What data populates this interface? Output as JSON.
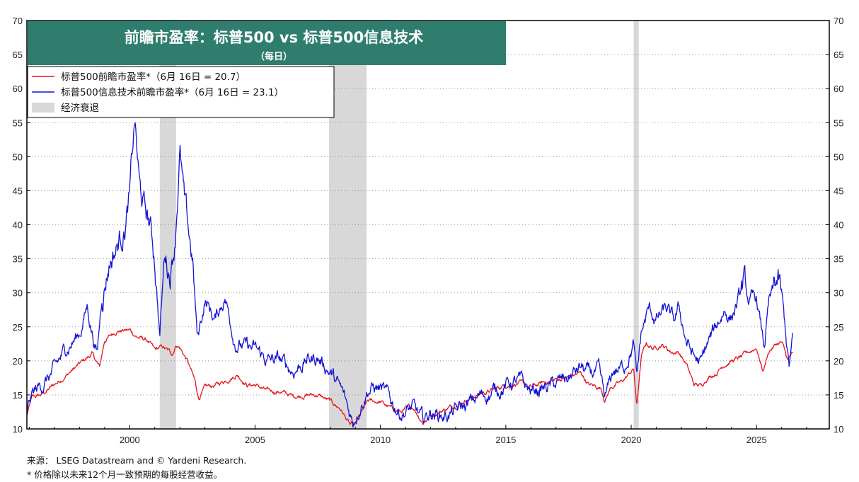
{
  "chart_data": {
    "type": "line",
    "title": "前瞻市盈率：标普500 vs 标普500信息技术",
    "subtitle": "（每日）",
    "xlim": [
      1995.9,
      2027.9
    ],
    "ylim": [
      10,
      70
    ],
    "y_ticks": [
      10,
      15,
      20,
      25,
      30,
      35,
      40,
      45,
      50,
      55,
      60,
      65,
      70
    ],
    "x_ticks": [
      2000,
      2005,
      2010,
      2015,
      2020,
      2025
    ],
    "x_tick_labels": [
      "2000",
      "2005",
      "2010",
      "2015",
      "2020",
      "2025"
    ],
    "y_tick_labels": [
      "10",
      "15",
      "20",
      "25",
      "30",
      "35",
      "40",
      "45",
      "50",
      "55",
      "60",
      "65",
      "70"
    ],
    "grid": "horizontal dotted",
    "legend_position": "top-left",
    "recessions": [
      [
        2001.2,
        2001.85
      ],
      [
        2007.95,
        2009.45
      ],
      [
        2020.1,
        2020.3
      ]
    ],
    "series": [
      {
        "name": "标普500前瞻市盈率*（6月 16日 = 20.7）",
        "color": "#e8141c",
        "points": [
          [
            1995.9,
            12.0
          ],
          [
            1996.1,
            14.5
          ],
          [
            1996.5,
            15.0
          ],
          [
            1997.0,
            16.5
          ],
          [
            1997.5,
            18.0
          ],
          [
            1998.0,
            19.5
          ],
          [
            1998.5,
            21.0
          ],
          [
            1998.8,
            19.0
          ],
          [
            1999.0,
            23.0
          ],
          [
            1999.5,
            24.5
          ],
          [
            2000.0,
            24.5
          ],
          [
            2000.3,
            23.5
          ],
          [
            2000.7,
            23.0
          ],
          [
            2001.0,
            21.5
          ],
          [
            2001.3,
            22.0
          ],
          [
            2001.7,
            21.0
          ],
          [
            2001.85,
            22.5
          ],
          [
            2002.0,
            22.0
          ],
          [
            2002.3,
            20.0
          ],
          [
            2002.6,
            17.0
          ],
          [
            2002.75,
            14.5
          ],
          [
            2003.0,
            16.0
          ],
          [
            2003.5,
            16.5
          ],
          [
            2004.0,
            17.5
          ],
          [
            2004.3,
            18.0
          ],
          [
            2004.7,
            16.5
          ],
          [
            2005.0,
            16.5
          ],
          [
            2005.5,
            15.5
          ],
          [
            2006.0,
            15.5
          ],
          [
            2006.5,
            14.8
          ],
          [
            2007.0,
            15.0
          ],
          [
            2007.5,
            15.0
          ],
          [
            2008.0,
            14.0
          ],
          [
            2008.4,
            13.0
          ],
          [
            2008.8,
            10.5
          ],
          [
            2009.0,
            10.5
          ],
          [
            2009.2,
            12.0
          ],
          [
            2009.5,
            14.0
          ],
          [
            2010.0,
            14.0
          ],
          [
            2010.4,
            13.0
          ],
          [
            2010.8,
            12.5
          ],
          [
            2011.3,
            13.2
          ],
          [
            2011.7,
            11.0
          ],
          [
            2012.0,
            12.0
          ],
          [
            2012.5,
            12.8
          ],
          [
            2013.0,
            13.5
          ],
          [
            2013.5,
            14.5
          ],
          [
            2014.0,
            15.2
          ],
          [
            2014.5,
            15.7
          ],
          [
            2015.0,
            16.5
          ],
          [
            2015.5,
            16.8
          ],
          [
            2016.0,
            16.0
          ],
          [
            2016.5,
            16.8
          ],
          [
            2017.0,
            17.2
          ],
          [
            2017.5,
            17.6
          ],
          [
            2018.0,
            18.2
          ],
          [
            2018.3,
            16.5
          ],
          [
            2018.8,
            16.0
          ],
          [
            2018.95,
            14.3
          ],
          [
            2019.2,
            16.2
          ],
          [
            2019.6,
            16.8
          ],
          [
            2019.9,
            18.0
          ],
          [
            2020.1,
            18.8
          ],
          [
            2020.22,
            13.2
          ],
          [
            2020.4,
            20.5
          ],
          [
            2020.6,
            22.5
          ],
          [
            2020.9,
            21.8
          ],
          [
            2021.2,
            22.5
          ],
          [
            2021.6,
            21.3
          ],
          [
            2021.9,
            21.3
          ],
          [
            2022.2,
            19.5
          ],
          [
            2022.5,
            16.5
          ],
          [
            2022.8,
            16.3
          ],
          [
            2023.0,
            17.5
          ],
          [
            2023.4,
            18.3
          ],
          [
            2023.7,
            19.5
          ],
          [
            2024.0,
            20.0
          ],
          [
            2024.4,
            20.5
          ],
          [
            2024.8,
            21.5
          ],
          [
            2025.0,
            22.0
          ],
          [
            2025.25,
            18.5
          ],
          [
            2025.5,
            21.5
          ],
          [
            2025.8,
            22.5
          ],
          [
            2026.0,
            22.7
          ],
          [
            2026.25,
            20.0
          ],
          [
            2026.4,
            21.0
          ],
          [
            2026.45,
            20.7
          ]
        ]
      },
      {
        "name": "标普500信息技术前瞻市盈率*（6月 16日 = 23.1）",
        "color": "#1414d8",
        "points": [
          [
            1995.9,
            12.5
          ],
          [
            1996.1,
            15.0
          ],
          [
            1996.5,
            16.5
          ],
          [
            1997.0,
            18.5
          ],
          [
            1997.5,
            22.0
          ],
          [
            1998.0,
            24.0
          ],
          [
            1998.3,
            28.0
          ],
          [
            1998.7,
            21.0
          ],
          [
            1998.9,
            30.0
          ],
          [
            1999.2,
            35.0
          ],
          [
            1999.5,
            37.0
          ],
          [
            1999.8,
            40.0
          ],
          [
            2000.0,
            44.0
          ],
          [
            2000.2,
            55.0
          ],
          [
            2000.4,
            45.0
          ],
          [
            2000.6,
            42.0
          ],
          [
            2000.8,
            40.0
          ],
          [
            2001.0,
            35.0
          ],
          [
            2001.2,
            24.0
          ],
          [
            2001.4,
            36.0
          ],
          [
            2001.6,
            33.0
          ],
          [
            2001.8,
            38.0
          ],
          [
            2002.0,
            51.0
          ],
          [
            2002.2,
            42.0
          ],
          [
            2002.5,
            35.0
          ],
          [
            2002.7,
            23.0
          ],
          [
            2003.0,
            29.0
          ],
          [
            2003.4,
            26.0
          ],
          [
            2003.8,
            29.5
          ],
          [
            2004.2,
            23.0
          ],
          [
            2004.6,
            22.0
          ],
          [
            2005.0,
            21.5
          ],
          [
            2005.5,
            20.0
          ],
          [
            2006.0,
            20.0
          ],
          [
            2006.5,
            18.5
          ],
          [
            2007.0,
            20.0
          ],
          [
            2007.5,
            20.5
          ],
          [
            2008.0,
            18.5
          ],
          [
            2008.5,
            15.0
          ],
          [
            2008.9,
            11.0
          ],
          [
            2009.1,
            13.0
          ],
          [
            2009.5,
            16.0
          ],
          [
            2010.0,
            16.0
          ],
          [
            2010.4,
            14.0
          ],
          [
            2010.8,
            12.5
          ],
          [
            2011.3,
            13.0
          ],
          [
            2011.7,
            11.0
          ],
          [
            2012.0,
            12.5
          ],
          [
            2012.5,
            12.0
          ],
          [
            2013.0,
            12.5
          ],
          [
            2013.5,
            13.5
          ],
          [
            2014.0,
            14.8
          ],
          [
            2014.5,
            15.5
          ],
          [
            2015.0,
            16.5
          ],
          [
            2015.5,
            17.0
          ],
          [
            2016.0,
            15.5
          ],
          [
            2016.5,
            16.0
          ],
          [
            2017.0,
            16.5
          ],
          [
            2017.5,
            17.5
          ],
          [
            2018.0,
            19.0
          ],
          [
            2018.3,
            18.0
          ],
          [
            2018.7,
            18.2
          ],
          [
            2018.95,
            14.0
          ],
          [
            2019.3,
            18.5
          ],
          [
            2019.7,
            19.0
          ],
          [
            2019.9,
            21.0
          ],
          [
            2020.1,
            22.5
          ],
          [
            2020.22,
            17.0
          ],
          [
            2020.4,
            24.0
          ],
          [
            2020.7,
            27.5
          ],
          [
            2021.0,
            26.0
          ],
          [
            2021.4,
            27.5
          ],
          [
            2021.7,
            25.5
          ],
          [
            2021.9,
            27.5
          ],
          [
            2022.2,
            23.0
          ],
          [
            2022.5,
            20.5
          ],
          [
            2022.8,
            19.5
          ],
          [
            2023.0,
            22.0
          ],
          [
            2023.4,
            25.0
          ],
          [
            2023.7,
            27.5
          ],
          [
            2024.0,
            26.5
          ],
          [
            2024.5,
            31.0
          ],
          [
            2024.7,
            28.5
          ],
          [
            2025.0,
            29.0
          ],
          [
            2025.3,
            22.0
          ],
          [
            2025.5,
            28.5
          ],
          [
            2025.85,
            31.5
          ],
          [
            2026.0,
            29.5
          ],
          [
            2026.3,
            19.0
          ],
          [
            2026.45,
            23.1
          ]
        ]
      }
    ],
    "legend": [
      {
        "label": "标普500前瞻市盈率*（6月 16日 = 20.7）",
        "color": "#e8141c",
        "kind": "line"
      },
      {
        "label": "标普500信息技术前瞻市盈率*（6月 16日 = 23.1）",
        "color": "#1414d8",
        "kind": "line"
      },
      {
        "label": "经济衰退",
        "color": "#d8d8d8",
        "kind": "box"
      }
    ]
  },
  "footer": {
    "source": "来源： LSEG Datastream and © Yardeni Research.",
    "note": "* 价格除以未来12个月一致预期的每股经营收益。"
  }
}
